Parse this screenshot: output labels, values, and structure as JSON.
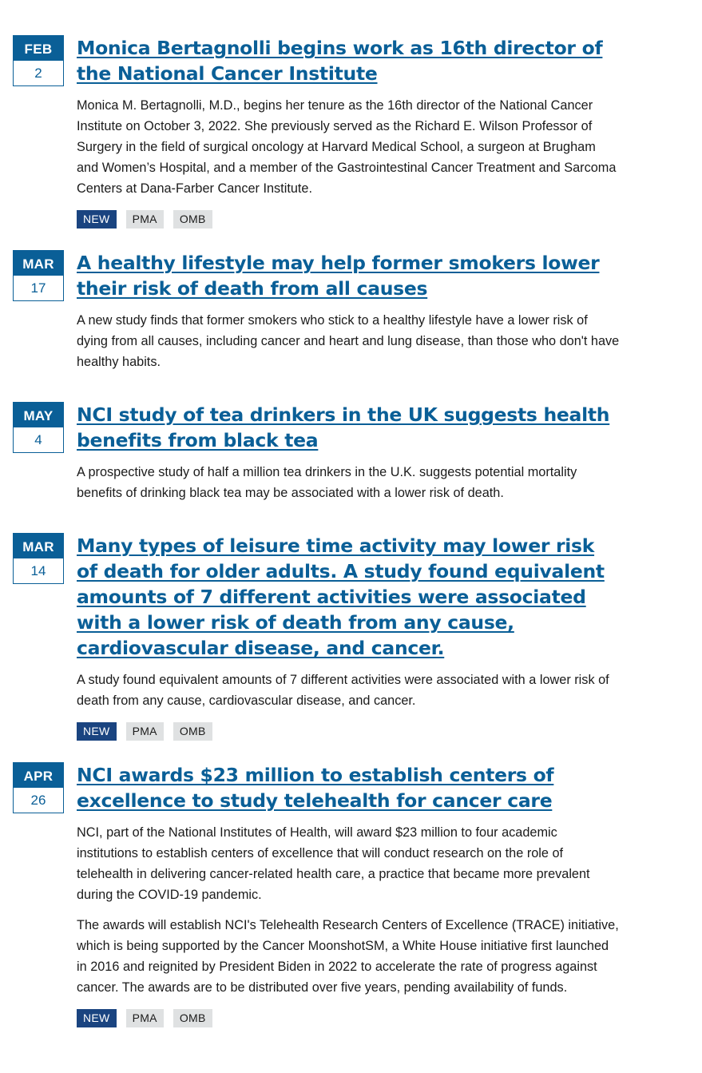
{
  "items": [
    {
      "month": "FEB",
      "day": "2",
      "title": "Monica Bertagnolli begins work as 16th director of the National Cancer Institute",
      "summary": "Monica M. Bertagnolli, M.D., begins her tenure as the 16th director of the National Cancer Institute on October 3, 2022. She previously served as the Richard E. Wilson Professor of Surgery in the field of surgical oncology at Harvard Medical School, a surgeon at Brugham and Women’s Hospital, and a member of the Gastrointestinal Cancer Treatment and Sarcoma Centers at Dana-Farber Cancer Institute.",
      "tags": [
        "NEW",
        "PMA",
        "OMB"
      ]
    },
    {
      "month": "MAR",
      "day": "17",
      "title": "A healthy lifestyle may help former smokers lower their risk of death from all causes",
      "summary": "A new study finds that former smokers who stick to a healthy lifestyle have a lower risk of dying from all causes, including cancer and heart and lung disease, than those who don't have healthy habits."
    },
    {
      "month": "MAY",
      "day": "4",
      "title": "NCI study of tea drinkers in the UK suggests health benefits from black tea",
      "summary": "A prospective study of half a million tea drinkers in the U.K. suggests potential mortality benefits of drinking black tea may be associated with a lower risk of death."
    },
    {
      "month": "MAR",
      "day": "14",
      "title": "Many types of leisure time activity may lower risk of death for older adults. A study found equivalent amounts of 7 different activities were associated with a lower risk of death from any cause, cardiovascular disease, and cancer.",
      "summary": "A study found equivalent amounts of 7 different activities were associated with a lower risk of death from any cause, cardiovascular disease, and cancer.",
      "tags": [
        "NEW",
        "PMA",
        "OMB"
      ]
    },
    {
      "month": "APR",
      "day": "26",
      "title": "NCI awards $23 million to establish centers of excellence to study telehealth for cancer care",
      "summary": "NCI, part of the National Institutes of Health, will award $23 million to four academic institutions to establish centers of excellence that will conduct research on the role of telehealth in delivering cancer-related health care, a practice that became more prevalent during the COVID-19 pandemic.",
      "summary2": "The awards will establish NCI's Telehealth Research Centers of Excellence (TRACE) initiative, which is being supported by the Cancer MoonshotSM, a White House initiative first launched in 2016 and reignited by President Biden in 2022 to accelerate the rate of progress against cancer. The awards are to be distributed over five years, pending availability of funds.",
      "tags": [
        "NEW",
        "PMA",
        "OMB"
      ]
    }
  ]
}
